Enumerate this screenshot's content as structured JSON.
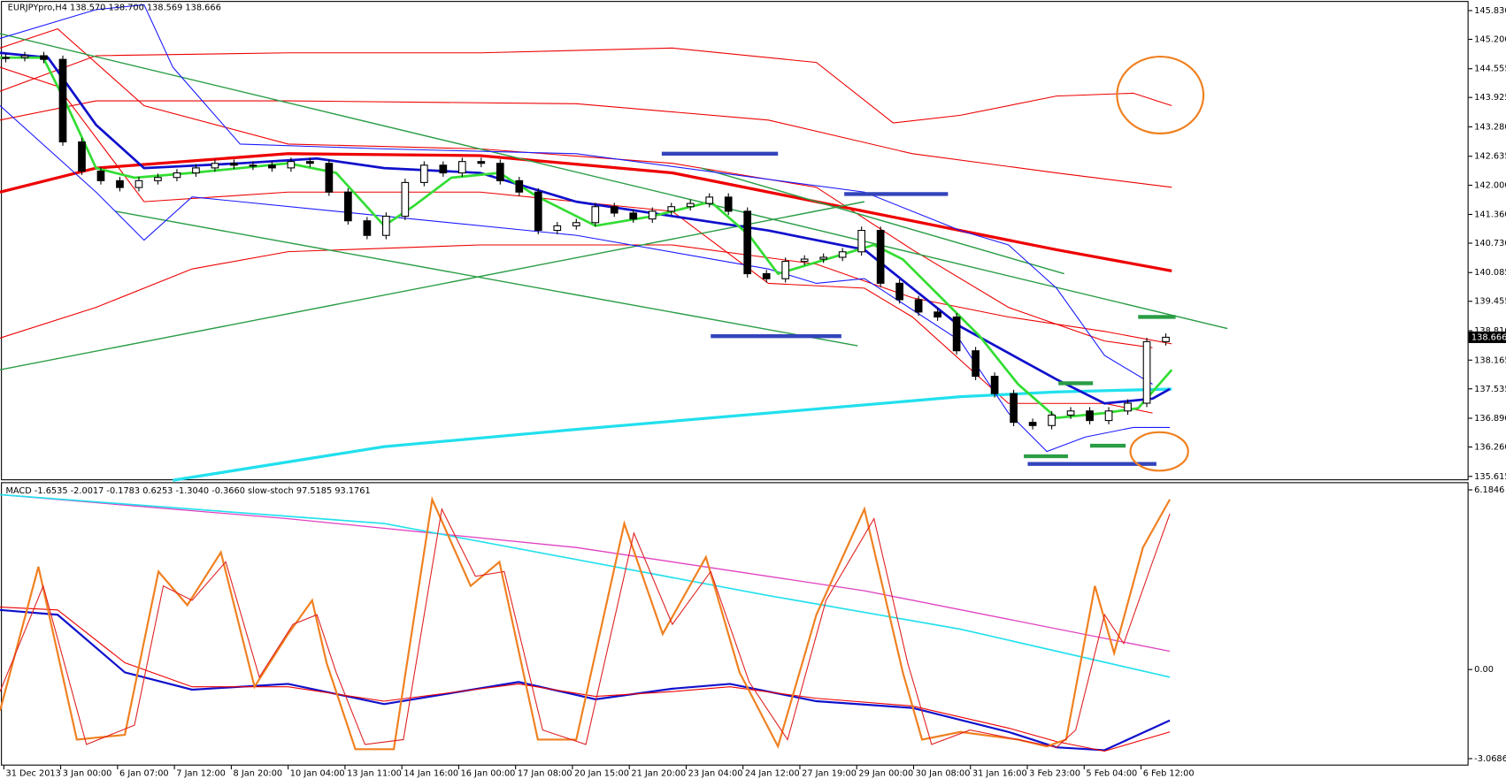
{
  "chart_data": {
    "type": "candlestick",
    "title": "EURJPYpro,H4  138.570 138.700 138.569 138.666",
    "lower_title": "MACD -1.6535 -2.0017 -0.1783 0.6253 -1.3040 -0.3660 slow-stoch 97.5185 93.1761",
    "x_labels": [
      "31 Dec 2013",
      "3 Jan 00:00",
      "6 Jan 07:00",
      "7 Jan 12:00",
      "8 Jan 20:00",
      "10 Jan 04:00",
      "13 Jan 11:00",
      "14 Jan 16:00",
      "16 Jan 00:00",
      "17 Jan 08:00",
      "20 Jan 15:00",
      "21 Jan 20:00",
      "23 Jan 04:00",
      "24 Jan 12:00",
      "27 Jan 19:00",
      "29 Jan 00:00",
      "30 Jan 08:00",
      "31 Jan 16:00",
      "3 Feb 23:00",
      "5 Feb 04:00",
      "6 Feb 12:00"
    ],
    "close": [
      144.8,
      144.84,
      144.76,
      142.95,
      142.31,
      142.1,
      141.95,
      142.1,
      142.17,
      142.27,
      142.38,
      142.48,
      142.44,
      142.44,
      142.38,
      142.52,
      142.48,
      141.85,
      141.22,
      140.9,
      141.32,
      142.06,
      142.44,
      142.27,
      142.52,
      142.48,
      142.1,
      141.85,
      141.01,
      141.11,
      141.18,
      141.53,
      141.39,
      141.26,
      141.43,
      141.53,
      141.6,
      141.74,
      141.43,
      140.06,
      139.95,
      140.33,
      140.38,
      140.42,
      140.54,
      141.01,
      139.85,
      139.49,
      139.22,
      139.11,
      138.37,
      137.81,
      137.43,
      136.8,
      136.73,
      136.96,
      137.05,
      136.84,
      137.05,
      137.22,
      138.57,
      138.666
    ],
    "ylim": [
      135.53,
      146.02
    ],
    "yticks": [
      {
        "value": 145.83,
        "label": "145.830"
      },
      {
        "value": 145.2,
        "label": "145.200"
      },
      {
        "value": 144.555,
        "label": "144.555"
      },
      {
        "value": 143.925,
        "label": "143.925"
      },
      {
        "value": 143.28,
        "label": "143.280"
      },
      {
        "value": 142.635,
        "label": "142.635"
      },
      {
        "value": 142.0,
        "label": "142.000"
      },
      {
        "value": 141.36,
        "label": "141.360"
      },
      {
        "value": 140.73,
        "label": "140.730"
      },
      {
        "value": 140.085,
        "label": "140.085"
      },
      {
        "value": 139.455,
        "label": "139.455"
      },
      {
        "value": 138.81,
        "label": "138.810"
      },
      {
        "value": 138.165,
        "label": "138.165"
      },
      {
        "value": 137.535,
        "label": "137.535"
      },
      {
        "value": 136.89,
        "label": "136.890"
      },
      {
        "value": 136.26,
        "label": "136.260"
      },
      {
        "value": 135.615,
        "label": "135.615"
      }
    ],
    "y2lim": [
      -3.307,
      6.416
    ],
    "y2ticks": [
      6.1846,
      {
        "value": 0,
        "label": "0.00"
      },
      -3.0686
    ]
  }
}
